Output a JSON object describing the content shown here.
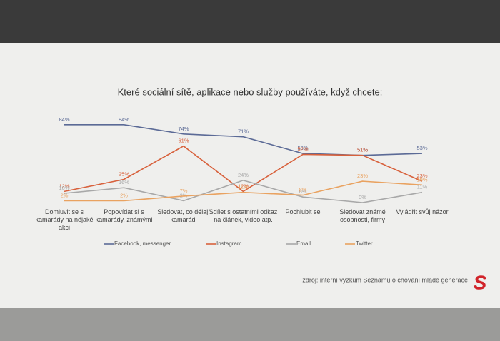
{
  "chart_data": {
    "type": "line",
    "title": "Které sociální sítě, aplikace nebo služby používáte, když chcete:",
    "categories": [
      "Domluvit se s kamarády na nějaké akci",
      "Popovídat si s kamarády, známými",
      "Sledovat, co dělají kamarádi",
      "Sdílet s ostatními odkaz na článek, video atp.",
      "Pochlubit se",
      "Sledovat známé osobnosti, firmy",
      "Vyjádřit svůj názor"
    ],
    "series": [
      {
        "name": "Facebook, messenger",
        "color": "#5b6a96",
        "values": [
          84,
          84,
          74,
          71,
          53,
          51,
          53
        ],
        "value_labels": [
          "84%",
          "84%",
          "74%",
          "71%",
          "53%",
          "51%",
          "53%"
        ]
      },
      {
        "name": "Instagram",
        "color": "#d8613c",
        "values": [
          12,
          25,
          61,
          12,
          52,
          51,
          23
        ],
        "value_labels": [
          "12%",
          "25%",
          "61%",
          "12%",
          "52%",
          "51%",
          "23%"
        ]
      },
      {
        "name": "Email",
        "color": "#a8a8a8",
        "values": [
          10,
          16,
          2,
          24,
          6,
          0,
          11
        ],
        "value_labels": [
          "10%",
          "16%",
          "2%",
          "24%",
          "6%",
          "0%",
          "11%"
        ]
      },
      {
        "name": "Twitter",
        "color": "#e9a260",
        "values": [
          2,
          2,
          7,
          11,
          8,
          23,
          19
        ],
        "value_labels": [
          "2%",
          "2%",
          "7%",
          "11%",
          "8%",
          "23%",
          "19%"
        ]
      }
    ],
    "legend": "bottom",
    "source": "zdroj: interní výzkum Seznamu o chování mladé generace",
    "logo": "S"
  }
}
